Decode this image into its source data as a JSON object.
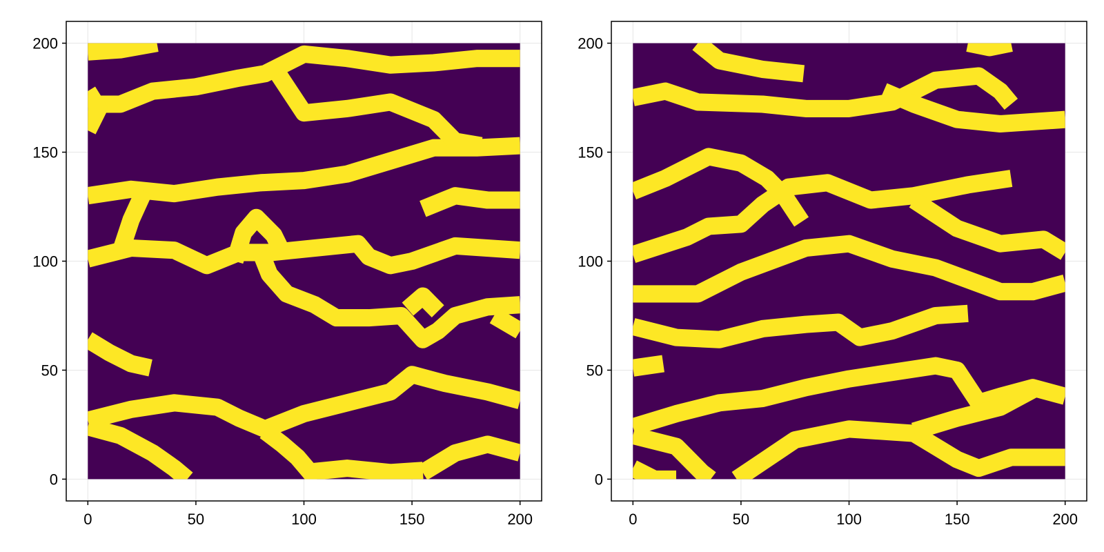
{
  "colors": {
    "background": "#440154",
    "channel": "#fde725",
    "grid": "#e6e6e6",
    "frame": "#000000"
  },
  "chart_data": [
    {
      "type": "heatmap",
      "title": "",
      "xlabel": "",
      "ylabel": "",
      "xlim": [
        -10,
        210
      ],
      "ylim": [
        -10,
        210
      ],
      "grid": true,
      "x_ticks": [
        0,
        50,
        100,
        150,
        200
      ],
      "y_ticks": [
        0,
        50,
        100,
        150,
        200
      ],
      "x_tick_labels": [
        "0",
        "50",
        "100",
        "150",
        "200"
      ],
      "y_tick_labels": [
        "0",
        "50",
        "100",
        "150",
        "200"
      ],
      "values": "binary field: 0 = background (dark purple), 1 = channel (yellow)",
      "channel_width": 8,
      "channels": [
        [
          [
            0,
            27
          ],
          [
            20,
            32
          ],
          [
            40,
            35
          ],
          [
            60,
            33
          ],
          [
            70,
            28
          ],
          [
            82,
            23
          ],
          [
            100,
            30
          ],
          [
            120,
            35
          ],
          [
            140,
            40
          ],
          [
            150,
            48
          ],
          [
            165,
            44
          ],
          [
            185,
            40
          ],
          [
            200,
            36
          ]
        ],
        [
          [
            0,
            24
          ],
          [
            15,
            20
          ],
          [
            30,
            12
          ],
          [
            40,
            5
          ],
          [
            46,
            0
          ]
        ],
        [
          [
            82,
            22
          ],
          [
            90,
            16
          ],
          [
            97,
            10
          ],
          [
            103,
            3
          ],
          [
            106,
            0
          ]
        ],
        [
          [
            100,
            3
          ],
          [
            120,
            5
          ],
          [
            140,
            3
          ],
          [
            155,
            4
          ]
        ],
        [
          [
            155,
            3
          ],
          [
            170,
            12
          ],
          [
            185,
            16
          ],
          [
            200,
            12
          ]
        ],
        [
          [
            0,
            64
          ],
          [
            10,
            58
          ],
          [
            20,
            53
          ],
          [
            29,
            51
          ]
        ],
        [
          [
            0,
            101
          ],
          [
            20,
            106
          ],
          [
            40,
            105
          ],
          [
            55,
            98
          ],
          [
            70,
            104
          ],
          [
            85,
            104
          ],
          [
            105,
            106
          ],
          [
            125,
            108
          ],
          [
            130,
            102
          ],
          [
            140,
            98
          ],
          [
            150,
            100
          ],
          [
            170,
            107
          ],
          [
            200,
            105
          ]
        ],
        [
          [
            80,
            104
          ],
          [
            84,
            94
          ],
          [
            92,
            85
          ],
          [
            105,
            80
          ],
          [
            115,
            74
          ],
          [
            130,
            74
          ],
          [
            145,
            75
          ],
          [
            155,
            64
          ],
          [
            162,
            68
          ],
          [
            170,
            75
          ],
          [
            185,
            79
          ],
          [
            200,
            80
          ]
        ],
        [
          [
            148,
            78
          ],
          [
            155,
            84
          ],
          [
            162,
            77
          ]
        ],
        [
          [
            188,
            75
          ],
          [
            200,
            68
          ]
        ],
        [
          [
            0,
            130
          ],
          [
            20,
            133
          ],
          [
            40,
            131
          ],
          [
            60,
            134
          ],
          [
            80,
            136
          ],
          [
            100,
            137
          ],
          [
            120,
            140
          ],
          [
            140,
            146
          ],
          [
            160,
            152
          ],
          [
            180,
            152
          ],
          [
            200,
            153
          ]
        ],
        [
          [
            15,
            104
          ],
          [
            20,
            119
          ],
          [
            26,
            132
          ]
        ],
        [
          [
            68,
            100
          ],
          [
            72,
            113
          ],
          [
            78,
            120
          ],
          [
            86,
            112
          ],
          [
            90,
            104
          ]
        ],
        [
          [
            155,
            124
          ],
          [
            170,
            130
          ],
          [
            185,
            128
          ],
          [
            200,
            128
          ]
        ],
        [
          [
            0,
            172
          ],
          [
            15,
            172
          ],
          [
            30,
            178
          ],
          [
            50,
            180
          ],
          [
            70,
            184
          ],
          [
            82,
            186
          ],
          [
            100,
            195
          ],
          [
            120,
            193
          ],
          [
            140,
            190
          ],
          [
            160,
            191
          ],
          [
            180,
            193
          ],
          [
            200,
            193
          ]
        ],
        [
          [
            0,
            160
          ],
          [
            5,
            170
          ],
          [
            0,
            178
          ]
        ],
        [
          [
            0,
            196
          ],
          [
            15,
            197
          ],
          [
            32,
            200
          ]
        ],
        [
          [
            88,
            186
          ],
          [
            100,
            168
          ],
          [
            120,
            170
          ],
          [
            140,
            173
          ],
          [
            160,
            165
          ],
          [
            170,
            155
          ],
          [
            182,
            153
          ]
        ]
      ]
    },
    {
      "type": "heatmap",
      "title": "",
      "xlabel": "",
      "ylabel": "",
      "xlim": [
        -10,
        210
      ],
      "ylim": [
        -10,
        210
      ],
      "grid": true,
      "x_ticks": [
        0,
        50,
        100,
        150,
        200
      ],
      "y_ticks": [
        0,
        50,
        100,
        150,
        200
      ],
      "x_tick_labels": [
        "0",
        "50",
        "100",
        "150",
        "200"
      ],
      "y_tick_labels": [
        "0",
        "50",
        "100",
        "150",
        "200"
      ],
      "values": "binary field: 0 = background (dark purple), 1 = channel (yellow)",
      "channel_width": 8,
      "channels": [
        [
          [
            0,
            5
          ],
          [
            10,
            0
          ],
          [
            20,
            0
          ]
        ],
        [
          [
            0,
            20
          ],
          [
            20,
            15
          ],
          [
            32,
            3
          ],
          [
            36,
            0
          ]
        ],
        [
          [
            48,
            0
          ],
          [
            60,
            8
          ],
          [
            75,
            18
          ],
          [
            100,
            23
          ],
          [
            130,
            21
          ],
          [
            140,
            15
          ],
          [
            150,
            9
          ],
          [
            160,
            5
          ],
          [
            175,
            10
          ],
          [
            200,
            10
          ]
        ],
        [
          [
            0,
            24
          ],
          [
            20,
            30
          ],
          [
            40,
            35
          ],
          [
            60,
            37
          ],
          [
            80,
            42
          ],
          [
            100,
            46
          ],
          [
            120,
            49
          ],
          [
            140,
            52
          ],
          [
            150,
            50
          ],
          [
            160,
            35
          ],
          [
            170,
            38
          ],
          [
            185,
            42
          ],
          [
            200,
            38
          ]
        ],
        [
          [
            130,
            22
          ],
          [
            150,
            28
          ],
          [
            170,
            33
          ],
          [
            185,
            41
          ]
        ],
        [
          [
            0,
            51
          ],
          [
            14,
            53
          ]
        ],
        [
          [
            0,
            70
          ],
          [
            20,
            65
          ],
          [
            40,
            64
          ],
          [
            60,
            69
          ],
          [
            80,
            71
          ],
          [
            95,
            72
          ],
          [
            105,
            65
          ],
          [
            120,
            68
          ],
          [
            140,
            75
          ],
          [
            155,
            76
          ]
        ],
        [
          [
            0,
            85
          ],
          [
            30,
            85
          ],
          [
            50,
            95
          ],
          [
            80,
            106
          ],
          [
            100,
            108
          ],
          [
            120,
            101
          ],
          [
            140,
            97
          ],
          [
            170,
            86
          ],
          [
            185,
            86
          ],
          [
            200,
            90
          ]
        ],
        [
          [
            0,
            103
          ],
          [
            25,
            111
          ],
          [
            35,
            116
          ],
          [
            50,
            117
          ],
          [
            60,
            126
          ],
          [
            72,
            134
          ],
          [
            90,
            136
          ],
          [
            110,
            128
          ],
          [
            130,
            130
          ],
          [
            155,
            135
          ],
          [
            175,
            138
          ]
        ],
        [
          [
            0,
            132
          ],
          [
            15,
            138
          ],
          [
            35,
            148
          ],
          [
            50,
            145
          ],
          [
            62,
            138
          ],
          [
            70,
            130
          ],
          [
            78,
            118
          ]
        ],
        [
          [
            130,
            128
          ],
          [
            150,
            115
          ],
          [
            170,
            108
          ],
          [
            190,
            110
          ],
          [
            200,
            104
          ]
        ],
        [
          [
            0,
            175
          ],
          [
            15,
            178
          ],
          [
            30,
            173
          ],
          [
            60,
            172
          ],
          [
            80,
            170
          ],
          [
            100,
            170
          ],
          [
            120,
            173
          ],
          [
            140,
            183
          ],
          [
            160,
            185
          ],
          [
            170,
            178
          ],
          [
            175,
            172
          ]
        ],
        [
          [
            116,
            178
          ],
          [
            130,
            172
          ],
          [
            150,
            165
          ],
          [
            170,
            163
          ],
          [
            200,
            165
          ]
        ],
        [
          [
            30,
            200
          ],
          [
            40,
            192
          ],
          [
            60,
            188
          ],
          [
            79,
            186
          ]
        ],
        [
          [
            155,
            200
          ],
          [
            165,
            198
          ],
          [
            175,
            200
          ]
        ]
      ]
    }
  ]
}
